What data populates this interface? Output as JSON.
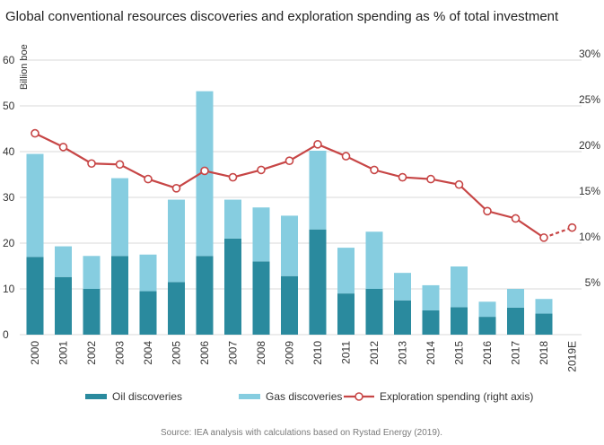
{
  "chart_data": {
    "type": "bar",
    "stacked": true,
    "title": "Global conventional resources discoveries and exploration spending as % of total investment",
    "ylabel": "Billion boe",
    "ylim": [
      0,
      60
    ],
    "yticks": [
      0,
      10,
      20,
      30,
      40,
      50,
      60
    ],
    "y2lim": [
      0,
      30
    ],
    "y2ticks": [
      "5%",
      "10%",
      "15%",
      "20%",
      "25%",
      "30%"
    ],
    "y2tick_values": [
      5,
      10,
      15,
      20,
      25,
      30
    ],
    "grid": true,
    "legend_position": "bottom",
    "categories": [
      "2000",
      "2001",
      "2002",
      "2003",
      "2004",
      "2005",
      "2006",
      "2007",
      "2008",
      "2009",
      "2010",
      "2011",
      "2012",
      "2013",
      "2014",
      "2015",
      "2016",
      "2017",
      "2018",
      "2019E"
    ],
    "series": [
      {
        "name": "Oil discoveries",
        "type": "bar",
        "color": "#2a8a9e",
        "values": [
          17,
          12.6,
          10,
          17.2,
          9.5,
          11.5,
          17.2,
          21,
          16,
          12.8,
          23,
          9,
          10,
          7.5,
          5.3,
          6,
          3.9,
          5.9,
          4.6,
          null
        ]
      },
      {
        "name": "Gas discoveries",
        "type": "bar",
        "color": "#86cde0",
        "values": [
          22.5,
          6.7,
          7.2,
          17,
          8,
          18,
          36,
          8.5,
          11.8,
          13.2,
          17.2,
          10,
          12.5,
          6,
          5.5,
          8.9,
          3.3,
          4.1,
          3.2,
          null
        ]
      },
      {
        "name": "Exploration spending (right axis)",
        "type": "line",
        "axis": "right",
        "color": "#c74646",
        "values": [
          22,
          20.5,
          18.7,
          18.6,
          17,
          16,
          17.9,
          17.2,
          18,
          19,
          20.8,
          19.5,
          18,
          17.2,
          17,
          16.4,
          13.5,
          12.7,
          10.6,
          11.7
        ],
        "projected_from_index": 18
      }
    ],
    "source": "Source: IEA analysis with calculations based on Rystad Energy (2019)."
  }
}
